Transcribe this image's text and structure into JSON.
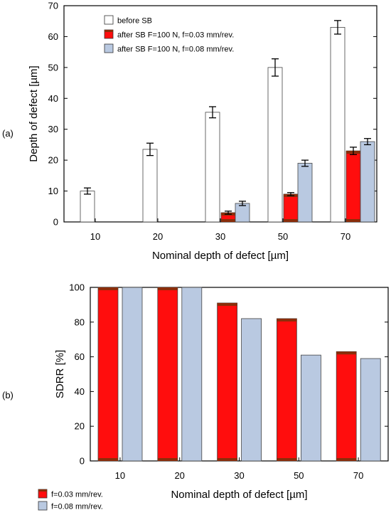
{
  "panel_labels": {
    "a": "(a)",
    "b": "(b)"
  },
  "colors": {
    "before": "#ffffff",
    "after_003": "#ff0d0d",
    "after_003_top": "#8b2d0a",
    "after_008": "#b9c9e1",
    "axis": "#000000",
    "grid_edge": "#000000"
  },
  "chart_data": [
    {
      "type": "bar",
      "panel": "(a)",
      "title": "",
      "xlabel": "Nominal depth of defect [µm]",
      "ylabel": "Depth of defect [µm]",
      "categories": [
        "10",
        "20",
        "30",
        "50",
        "70"
      ],
      "ylim": [
        0,
        70
      ],
      "yticks": [
        "0",
        "10",
        "20",
        "30",
        "40",
        "50",
        "60",
        "70"
      ],
      "legend_position": "top-left",
      "series": [
        {
          "name": "before SB",
          "values": [
            10,
            23.5,
            35.5,
            50,
            63
          ],
          "errors": [
            1,
            2,
            1.8,
            2.8,
            2.2
          ]
        },
        {
          "name": "after SB F=100 N, f=0.03 mm/rev.",
          "values": [
            null,
            null,
            3,
            9,
            23
          ],
          "errors": [
            0,
            0,
            0.5,
            0.5,
            1.2
          ]
        },
        {
          "name": "after SB F=100 N, f=0.08 mm/rev.",
          "values": [
            null,
            null,
            6,
            19,
            26
          ],
          "errors": [
            0,
            0,
            0.7,
            1,
            1
          ]
        }
      ]
    },
    {
      "type": "bar",
      "panel": "(b)",
      "title": "",
      "xlabel": "Nominal depth of defect [µm]",
      "ylabel": "SDRR [%]",
      "categories": [
        "10",
        "20",
        "30",
        "50",
        "70"
      ],
      "ylim": [
        0,
        100
      ],
      "yticks": [
        "0",
        "20",
        "40",
        "60",
        "80",
        "100"
      ],
      "legend_position": "bottom-left",
      "series": [
        {
          "name": "f=0.03 mm/rev.",
          "values": [
            100,
            100,
            91,
            82,
            63
          ]
        },
        {
          "name": "f=0.08 mm/rev.",
          "values": [
            100,
            100,
            82,
            61,
            59
          ]
        }
      ]
    }
  ]
}
